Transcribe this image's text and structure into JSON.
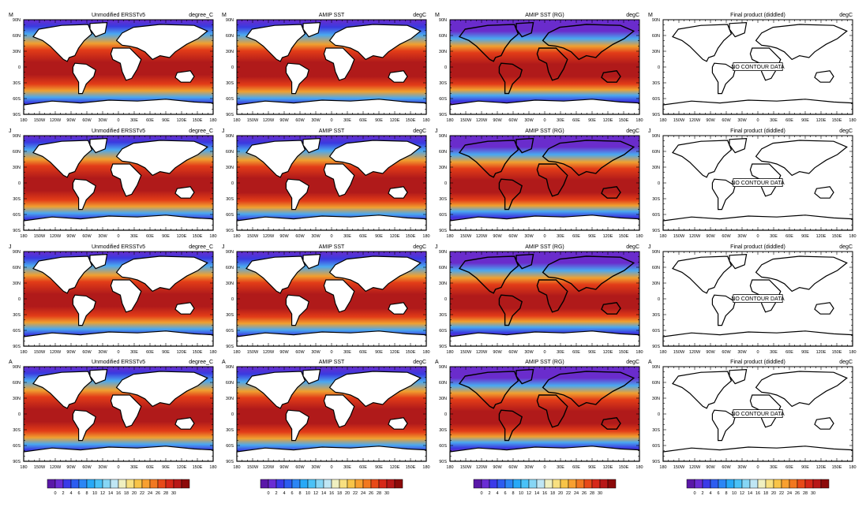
{
  "panel_titles": [
    "Unmodified ERSSTv5",
    "AMIP SST",
    "AMIP SST (RG)",
    "Final product (diddled)"
  ],
  "units": [
    "degree_C",
    "degC",
    "degC",
    "degC"
  ],
  "months": [
    "M",
    "J",
    "J",
    "A"
  ],
  "lat_labels": [
    "90N",
    "60N",
    "30N",
    "0",
    "30S",
    "60S",
    "90S"
  ],
  "lon_labels": [
    "180",
    "150W",
    "120W",
    "90W",
    "60W",
    "30W",
    "0",
    "30E",
    "60E",
    "90E",
    "120E",
    "150E",
    "180"
  ],
  "no_data_label": "NO CONTOUR DATA",
  "colorbar_labels": [
    "0",
    "2",
    "4",
    "6",
    "8",
    "10",
    "12",
    "14",
    "16",
    "18",
    "20",
    "22",
    "24",
    "26",
    "28",
    "30"
  ],
  "colorbar_colors": [
    "#5a18a8",
    "#6a2dd4",
    "#3a3ae8",
    "#2c5cf0",
    "#2b86f5",
    "#27a9f7",
    "#4ac2f7",
    "#86d6f5",
    "#bfe6f4",
    "#f0f0c0",
    "#f8e080",
    "#f8c448",
    "#f8a030",
    "#f27820",
    "#e84a18",
    "#d62818",
    "#b81818",
    "#8c0a0a"
  ],
  "map_colors": {
    "ocean_deep": "#b01a1a",
    "ocean_warm": "#e23c18",
    "ocean_mid": "#f0a030",
    "ocean_cool": "#4aa8f0",
    "ocean_cold": "#3a3ae0",
    "polar": "#6a2ccc",
    "land": "#ffffff",
    "coast": "#000000"
  }
}
